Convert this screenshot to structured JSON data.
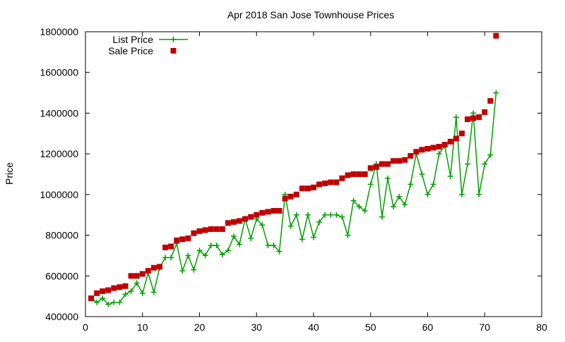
{
  "chart_data": {
    "type": "line",
    "title": "Apr 2018 San Jose Townhouse Prices",
    "xlabel": "",
    "ylabel": "Price",
    "xlim": [
      0,
      80
    ],
    "ylim": [
      400000,
      1800000
    ],
    "x_ticks": [
      "0",
      "10",
      "20",
      "30",
      "40",
      "50",
      "60",
      "70",
      "80"
    ],
    "y_ticks": [
      "400000",
      "600000",
      "800000",
      "1000000",
      "1200000",
      "1400000",
      "1600000",
      "1800000"
    ],
    "grid": false,
    "legend_position": "top-left",
    "x": [
      1,
      2,
      3,
      4,
      5,
      6,
      7,
      8,
      9,
      10,
      11,
      12,
      13,
      14,
      15,
      16,
      17,
      18,
      19,
      20,
      21,
      22,
      23,
      24,
      25,
      26,
      27,
      28,
      29,
      30,
      31,
      32,
      33,
      34,
      35,
      36,
      37,
      38,
      39,
      40,
      41,
      42,
      43,
      44,
      45,
      46,
      47,
      48,
      49,
      50,
      51,
      52,
      53,
      54,
      55,
      56,
      57,
      58,
      59,
      60,
      61,
      62,
      63,
      64,
      65,
      66,
      67,
      68,
      69,
      70,
      71,
      72
    ],
    "series": [
      {
        "name": "List Price",
        "color": "#00a000",
        "style": "linespoints",
        "marker": "plus",
        "values": [
          490000,
          470000,
          490000,
          460000,
          470000,
          470000,
          510000,
          525000,
          565000,
          515000,
          615000,
          520000,
          640000,
          690000,
          690000,
          760000,
          625000,
          700000,
          630000,
          725000,
          700000,
          750000,
          750000,
          705000,
          725000,
          795000,
          755000,
          880000,
          785000,
          880000,
          850000,
          750000,
          750000,
          720000,
          1000000,
          845000,
          900000,
          780000,
          900000,
          790000,
          865000,
          900000,
          900000,
          900000,
          890000,
          800000,
          970000,
          940000,
          920000,
          1050000,
          1150000,
          890000,
          1080000,
          940000,
          990000,
          950000,
          1050000,
          1200000,
          1100000,
          1000000,
          1050000,
          1200000,
          1240000,
          1090000,
          1380000,
          1000000,
          1150000,
          1400000,
          1000000,
          1150000,
          1195000,
          1500000
        ]
      },
      {
        "name": "Sale Price",
        "color": "#c00000",
        "style": "points",
        "marker": "square",
        "values": [
          490000,
          515000,
          525000,
          530000,
          540000,
          545000,
          550000,
          600000,
          600000,
          610000,
          625000,
          640000,
          645000,
          740000,
          745000,
          775000,
          780000,
          785000,
          810000,
          820000,
          825000,
          830000,
          830000,
          830000,
          860000,
          865000,
          870000,
          880000,
          890000,
          900000,
          910000,
          915000,
          920000,
          920000,
          980000,
          990000,
          1000000,
          1030000,
          1030000,
          1035000,
          1050000,
          1055000,
          1060000,
          1060000,
          1080000,
          1095000,
          1100000,
          1100000,
          1100000,
          1130000,
          1135000,
          1150000,
          1150000,
          1165000,
          1165000,
          1170000,
          1190000,
          1210000,
          1220000,
          1225000,
          1230000,
          1235000,
          1245000,
          1260000,
          1275000,
          1300000,
          1370000,
          1375000,
          1380000,
          1405000,
          1460000,
          1780000
        ]
      }
    ]
  }
}
